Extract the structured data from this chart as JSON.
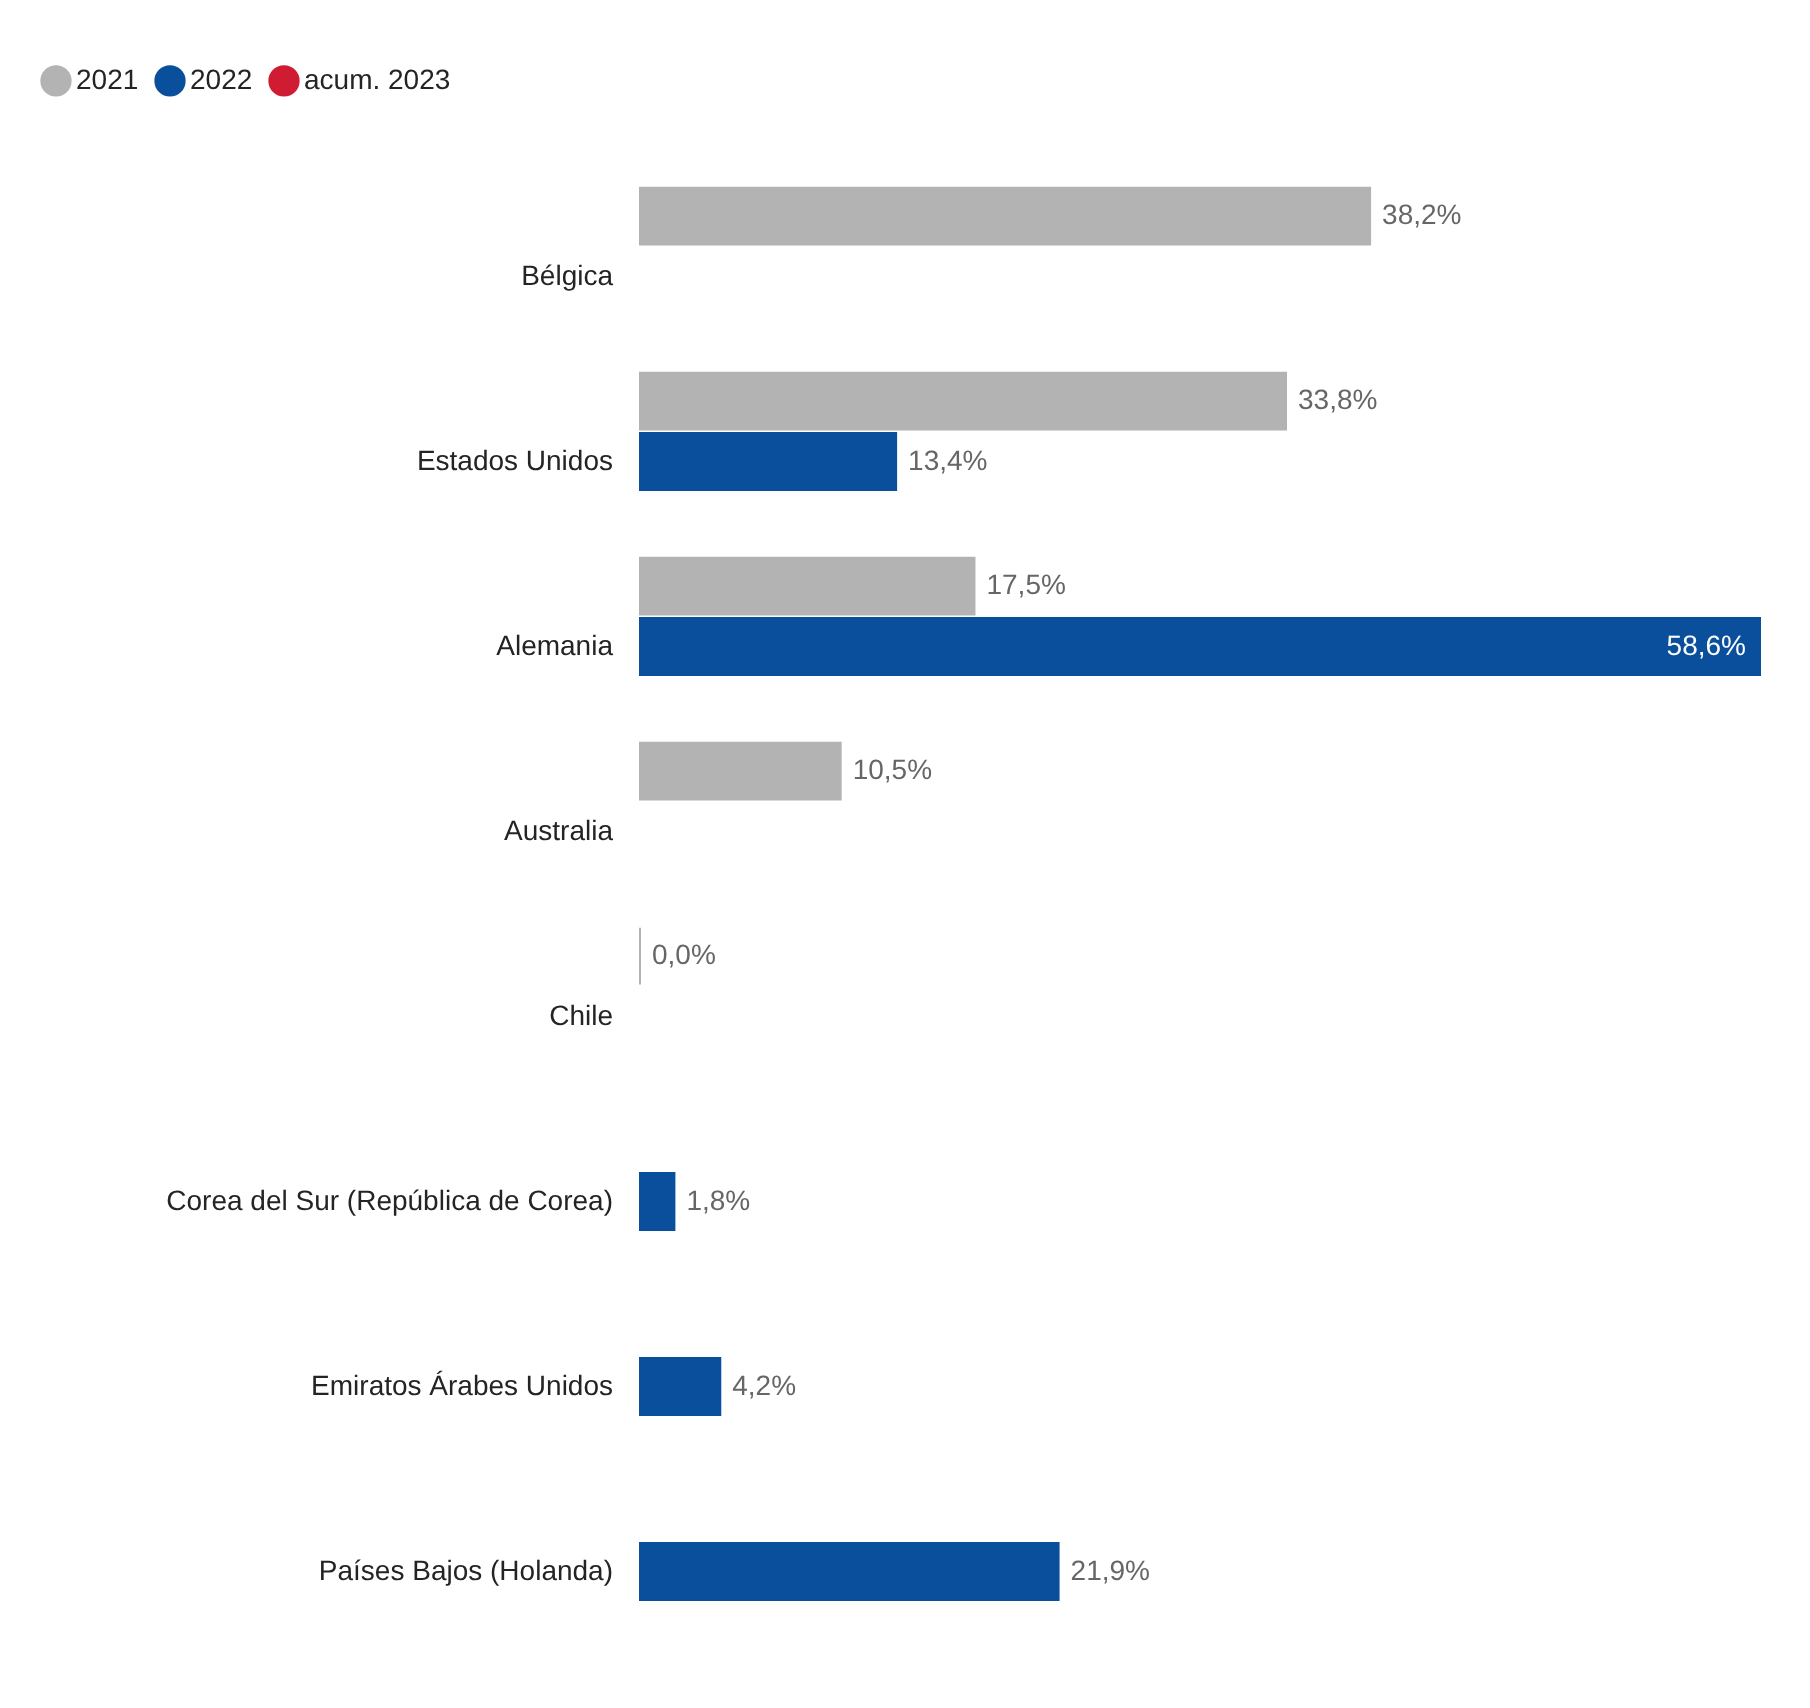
{
  "chart_data": {
    "type": "bar",
    "orientation": "horizontal",
    "legend": "top left",
    "categories": [
      "Bélgica",
      "Estados Unidos",
      "Alemania",
      "Australia",
      "Chile",
      "Corea del Sur (República de Corea)",
      "Emiratos Árabes Unidos",
      "Países Bajos (Holanda)"
    ],
    "series": [
      {
        "name": "2021",
        "color": "#b3b3b3",
        "values": [
          38.2,
          33.8,
          17.5,
          10.5,
          0.0,
          null,
          null,
          null
        ],
        "value_labels": [
          "38,2%",
          "33,8%",
          "17,5%",
          "10,5%",
          "0,0%",
          null,
          null,
          null
        ]
      },
      {
        "name": "2022",
        "color": "#0a4f9c",
        "values": [
          null,
          13.4,
          58.6,
          null,
          null,
          1.8,
          4.2,
          21.9
        ],
        "value_labels": [
          null,
          "13,4%",
          "58,6%",
          null,
          null,
          "1,8%",
          "4,2%",
          "21,9%"
        ]
      },
      {
        "name": "acum. 2023",
        "color": "#d01c33",
        "values": [
          null,
          null,
          null,
          null,
          null,
          null,
          null,
          null
        ],
        "value_labels": [
          null,
          null,
          null,
          null,
          null,
          null,
          null,
          null
        ]
      }
    ]
  }
}
